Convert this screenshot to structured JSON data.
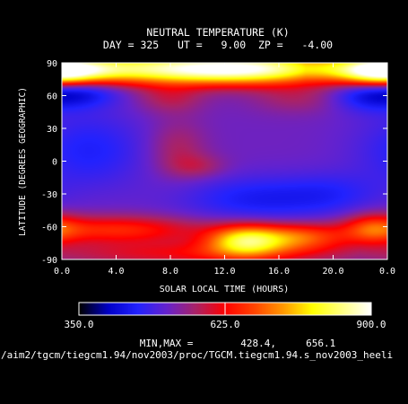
{
  "chart_data": {
    "type": "heatmap",
    "title": "NEUTRAL TEMPERATURE (K)",
    "subtitle": "DAY = 325   UT =   9.00  ZP =   -4.00",
    "xlabel": "SOLAR LOCAL TIME (HOURS)",
    "ylabel": "LATITUDE (DEGREES GEOGRAPHIC)",
    "xlim": [
      0,
      24
    ],
    "ylim": [
      -90,
      90
    ],
    "x_ticks": [
      "0.0",
      "4.0",
      "8.0",
      "12.0",
      "16.0",
      "20.0",
      "0.0"
    ],
    "y_ticks": [
      "90",
      "60",
      "30",
      "0",
      "-30",
      "-60",
      "-90"
    ],
    "features": [
      {
        "x": 6.0,
        "y": 85,
        "sx": 8.0,
        "sy": 10,
        "a": 0.95
      },
      {
        "x": 14.0,
        "y": 85,
        "sx": 5.0,
        "sy": 10,
        "a": 0.9
      },
      {
        "x": 0.5,
        "y": 82,
        "sx": 2.5,
        "sy": 9,
        "a": 0.55
      },
      {
        "x": 23.5,
        "y": 82,
        "sx": 2.0,
        "sy": 9,
        "a": 0.6
      },
      {
        "x": 1.5,
        "y": 65,
        "sx": 2.0,
        "sy": 10,
        "a": -0.35
      },
      {
        "x": 22.5,
        "y": 62,
        "sx": 2.0,
        "sy": 11,
        "a": -0.35
      },
      {
        "x": 8.0,
        "y": 58,
        "sx": 1.8,
        "sy": 10,
        "a": 0.22
      },
      {
        "x": 17.5,
        "y": 58,
        "sx": 2.5,
        "sy": 10,
        "a": 0.18
      },
      {
        "x": 2.0,
        "y": 10,
        "sx": 3.0,
        "sy": 25,
        "a": -0.25
      },
      {
        "x": 8.5,
        "y": 12,
        "sx": 1.5,
        "sy": 18,
        "a": 0.2
      },
      {
        "x": 10.0,
        "y": -5,
        "sx": 1.5,
        "sy": 8,
        "a": 0.18
      },
      {
        "x": 14.5,
        "y": -35,
        "sx": 4.0,
        "sy": 15,
        "a": -0.28
      },
      {
        "x": 4.0,
        "y": -63,
        "sx": 4.5,
        "sy": 9,
        "a": 0.5
      },
      {
        "x": 13.5,
        "y": -73,
        "sx": 2.0,
        "sy": 10,
        "a": 0.95
      },
      {
        "x": 17.5,
        "y": -70,
        "sx": 2.5,
        "sy": 9,
        "a": 0.6
      },
      {
        "x": 23.0,
        "y": -62,
        "sx": 1.5,
        "sy": 10,
        "a": 0.45
      },
      {
        "x": 10.0,
        "y": -85,
        "sx": 8.0,
        "sy": 8,
        "a": 0.35
      },
      {
        "x": 20.0,
        "y": -30,
        "sx": 2.5,
        "sy": 14,
        "a": -0.15
      }
    ],
    "base_value": 0.4,
    "colorbar": {
      "min_label": "350.0",
      "mid_label": "625.0",
      "max_label": "900.0",
      "colors": [
        "#000000",
        "#0000c8",
        "#2222ff",
        "#6622cc",
        "#aa2266",
        "#ff0000",
        "#ff4400",
        "#ff9900",
        "#ffff00",
        "#ffff80",
        "#ffffff"
      ]
    }
  },
  "minmax_text": "MIN,MAX =        428.4,     656.1",
  "source_path": "/aim2/tgcm/tiegcm1.94/nov2003/proc/TGCM.tiegcm1.94.s_nov2003_heeli"
}
